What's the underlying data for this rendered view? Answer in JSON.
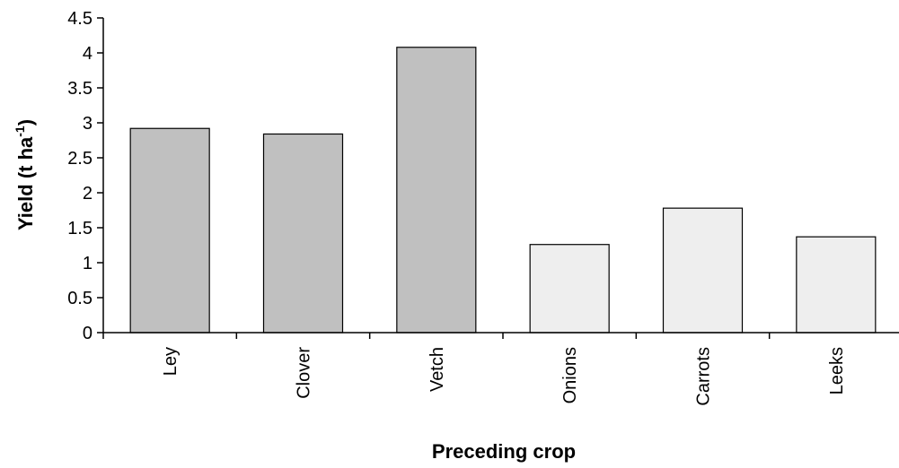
{
  "chart_data": {
    "type": "bar",
    "categories": [
      "Ley",
      "Clover",
      "Vetch",
      "Onions",
      "Carrots",
      "Leeks"
    ],
    "values": [
      2.92,
      2.84,
      4.08,
      1.26,
      1.78,
      1.37
    ],
    "bar_colors": [
      "#c0c0c0",
      "#c0c0c0",
      "#c0c0c0",
      "#eeeeee",
      "#eeeeee",
      "#eeeeee"
    ],
    "xlabel": "Preceding crop",
    "ylabel": {
      "main": "Yield (t ha",
      "superscript": "-1",
      "close": ")"
    },
    "ylim": [
      0,
      4.5
    ],
    "yticks": [
      "0",
      "0.5",
      "1",
      "1.5",
      "2",
      "2.5",
      "3",
      "3.5",
      "4",
      "4.5"
    ],
    "grid": false,
    "legend": "none"
  }
}
